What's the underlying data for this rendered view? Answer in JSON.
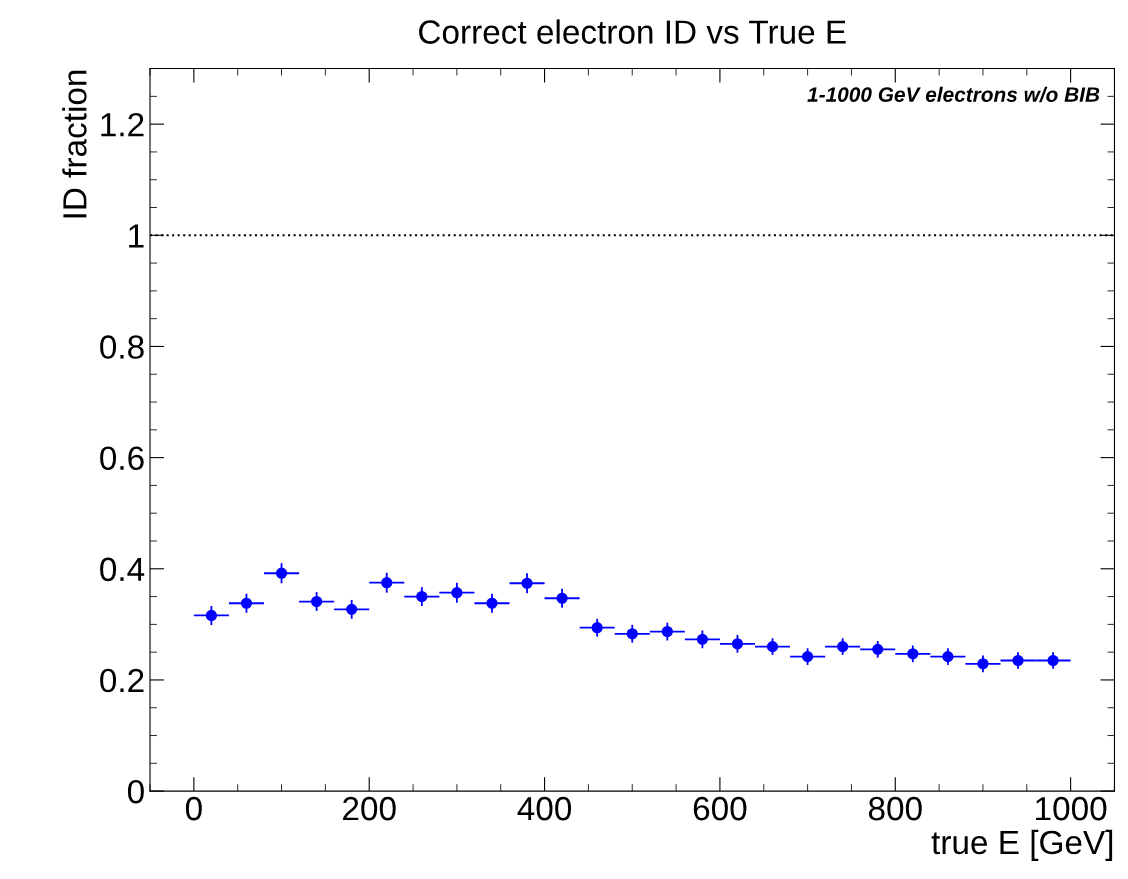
{
  "chart_data": {
    "type": "scatter",
    "title": "Correct electron ID vs True E",
    "xlabel": "true E [GeV]",
    "ylabel": "ID fraction",
    "annotations": [
      "1-1000 GeV electrons w/o BIB"
    ],
    "x": [
      20,
      60,
      100,
      140,
      180,
      220,
      260,
      300,
      340,
      380,
      420,
      460,
      500,
      540,
      580,
      620,
      660,
      700,
      740,
      780,
      820,
      860,
      900,
      940,
      980
    ],
    "series": [
      {
        "color": "#0000ff",
        "values": [
          0.316,
          0.338,
          0.392,
          0.341,
          0.327,
          0.375,
          0.35,
          0.357,
          0.338,
          0.374,
          0.347,
          0.294,
          0.283,
          0.287,
          0.273,
          0.265,
          0.26,
          0.242,
          0.26,
          0.255,
          0.247,
          0.242,
          0.229,
          0.235,
          0.235
        ],
        "errors": [
          0.017,
          0.017,
          0.018,
          0.017,
          0.017,
          0.018,
          0.017,
          0.018,
          0.017,
          0.018,
          0.017,
          0.016,
          0.016,
          0.016,
          0.016,
          0.016,
          0.015,
          0.015,
          0.015,
          0.015,
          0.015,
          0.015,
          0.015,
          0.015,
          0.015
        ],
        "xerrors": [
          20,
          20,
          20,
          20,
          20,
          20,
          20,
          20,
          20,
          20,
          20,
          20,
          20,
          20,
          20,
          20,
          20,
          20,
          20,
          20,
          20,
          20,
          20,
          20,
          20
        ]
      }
    ],
    "marker": "circle",
    "xlim": [
      -50,
      1050
    ],
    "xticks": [
      0,
      200,
      400,
      600,
      800,
      1000
    ],
    "ylim": [
      0,
      1.3
    ],
    "yticks": [
      0,
      0.2,
      0.4,
      0.6,
      0.8,
      1,
      1.2
    ],
    "ref_lines": [
      {
        "axis": "y",
        "value": 1,
        "color": "#000000",
        "line_style": "dotted"
      }
    ],
    "grid": false,
    "legend": false
  }
}
